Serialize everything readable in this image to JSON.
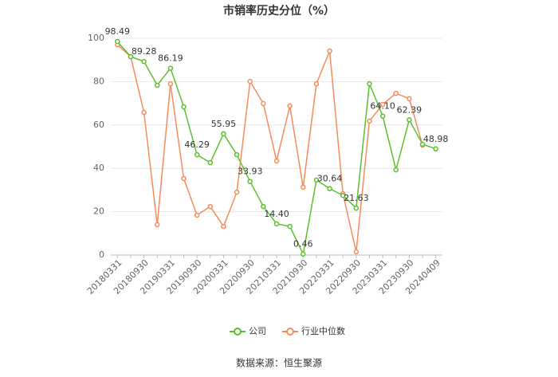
{
  "chart_data": {
    "type": "line",
    "title": "市销率历史分位（%）",
    "categories": [
      "20180331",
      null,
      "20180930",
      null,
      "20190331",
      null,
      "20190930",
      null,
      "20200331",
      null,
      "20200930",
      null,
      "20210331",
      null,
      "20210930",
      null,
      "20220331",
      null,
      "20220930",
      null,
      "20230331",
      null,
      "20230930",
      null,
      "20240409"
    ],
    "series": [
      {
        "name": "公司",
        "color": "#5cbf2e",
        "values": [
          98.49,
          91.5,
          89.28,
          78.3,
          86.19,
          68.4,
          46.29,
          42.6,
          55.95,
          46.3,
          33.93,
          22.4,
          14.4,
          13.2,
          0.46,
          34.6,
          30.64,
          27.5,
          21.63,
          79,
          64.1,
          39.3,
          62.39,
          51.1,
          48.98
        ],
        "value_labels": [
          "98.49",
          null,
          "89.28",
          null,
          "86.19",
          null,
          "46.29",
          null,
          "55.95",
          null,
          "33.93",
          null,
          "14.40",
          null,
          "0.46",
          null,
          "30.64",
          null,
          "21.63",
          null,
          "64.10",
          null,
          "62.39",
          null,
          "48.98"
        ]
      },
      {
        "name": "行业中位数",
        "color": "#f58b5b",
        "values": [
          97,
          91.5,
          65.8,
          14,
          79,
          35.3,
          18.4,
          22.4,
          13.2,
          29,
          80.1,
          69.9,
          43.4,
          68.8,
          31.3,
          79,
          94.1,
          28.3,
          1.5,
          61.8,
          69.5,
          74.6,
          72.1,
          50.7,
          null
        ]
      }
    ],
    "ylim": [
      0,
      100
    ],
    "yticks": [
      0,
      20,
      40,
      60,
      80,
      100
    ],
    "grid": true,
    "source": "数据来源：恒生聚源"
  }
}
